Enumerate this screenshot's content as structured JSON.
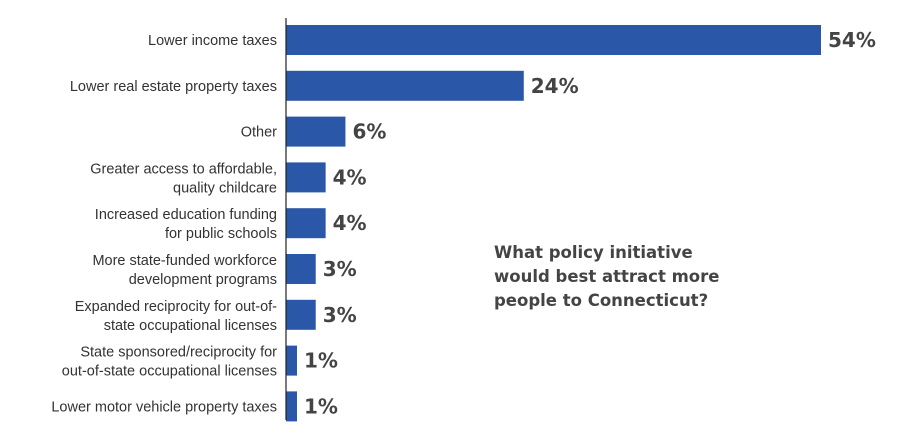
{
  "chart_data": {
    "type": "bar",
    "orientation": "horizontal",
    "title": "What policy initiative would best attract more people to Connecticut?",
    "categories": [
      [
        "Lower income taxes"
      ],
      [
        "Lower real estate property taxes"
      ],
      [
        "Other"
      ],
      [
        "Greater access to affordable,",
        "quality childcare"
      ],
      [
        "Increased education funding",
        "for public schools"
      ],
      [
        "More state-funded workforce",
        "development programs"
      ],
      [
        "Expanded reciprocity for out-of-",
        "state occupational licenses"
      ],
      [
        "State sponsored/reciprocity for",
        "out-of-state occupational licenses"
      ],
      [
        "Lower motor vehicle property taxes"
      ]
    ],
    "values": [
      54,
      24,
      6,
      4,
      4,
      3,
      3,
      1,
      1
    ],
    "value_labels": [
      "54%",
      "24%",
      "6%",
      "4%",
      "4%",
      "3%",
      "3%",
      "1%",
      "1%"
    ],
    "xlim": [
      0,
      54
    ],
    "unit": "%",
    "bar_color": "#2a57a7",
    "axis_color": "#222222"
  }
}
